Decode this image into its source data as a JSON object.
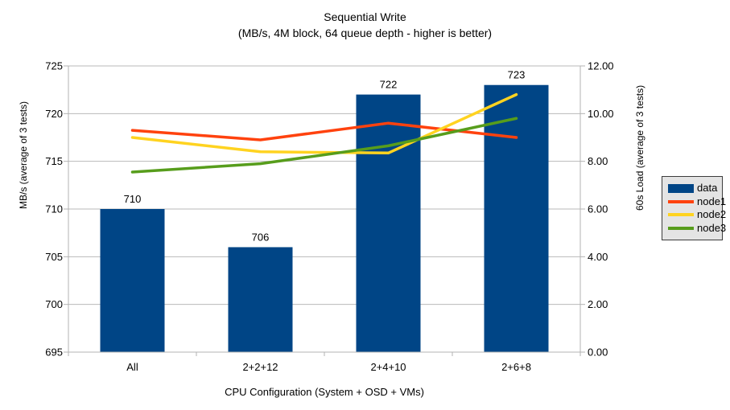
{
  "title": "Sequential Write",
  "subtitle": "(MB/s, 4M block, 64 queue depth - higher is better)",
  "chart_data": {
    "type": "bar",
    "note": "combo chart: one bar series on left axis, three line series on right axis",
    "categories": [
      "All",
      "2+2+12",
      "2+4+10",
      "2+6+8"
    ],
    "xlabel": "CPU Configuration (System + OSD + VMs)",
    "ylabel_left": "MB/s (average of 3 tests)",
    "ylabel_right": "60s Load (average of 3 tests)",
    "ylim_left": [
      695,
      725
    ],
    "ytick_step_left": 5,
    "ylim_right": [
      0,
      12
    ],
    "ytick_step_right": 2,
    "right_tick_decimals": 2,
    "grid": true,
    "legend_position": "right",
    "bar_series": {
      "name": "data",
      "axis": "left",
      "color": "#004586",
      "values": [
        710,
        706,
        722,
        723
      ],
      "data_labels": [
        "710",
        "706",
        "722",
        "723"
      ]
    },
    "line_series": [
      {
        "name": "node1",
        "axis": "right",
        "color": "#ff420e",
        "values": [
          9.3,
          8.9,
          9.6,
          9.0
        ]
      },
      {
        "name": "node2",
        "axis": "right",
        "color": "#ffd320",
        "values": [
          9.0,
          8.4,
          8.35,
          10.8
        ]
      },
      {
        "name": "node3",
        "axis": "right",
        "color": "#579d1c",
        "values": [
          7.55,
          7.9,
          8.65,
          9.8
        ]
      }
    ],
    "legend": [
      "data",
      "node1",
      "node2",
      "node3"
    ]
  },
  "colors": {
    "background": "#ffffff",
    "grid": "#b9b9b9",
    "axis": "#b3b3b3",
    "text": "#000000",
    "legend_bg": "#e4e4e4",
    "legend_border": "#3c3c3c"
  }
}
